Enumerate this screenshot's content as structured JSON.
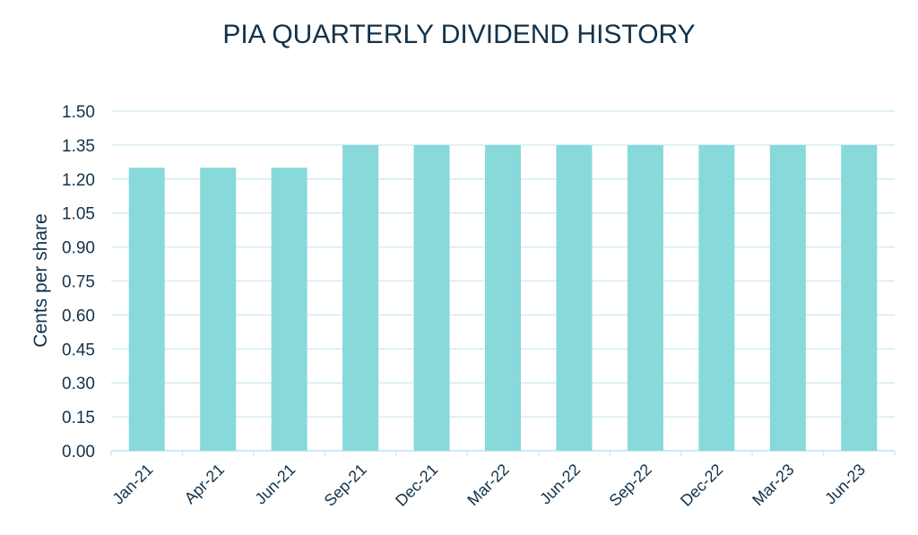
{
  "chart_data": {
    "type": "bar",
    "title": "PIA QUARTERLY DIVIDEND HISTORY",
    "xlabel": "",
    "ylabel": "Cents per share",
    "categories": [
      "Jan-21",
      "Apr-21",
      "Jun-21",
      "Sep-21",
      "Dec-21",
      "Mar-22",
      "Jun-22",
      "Sep-22",
      "Dec-22",
      "Mar-23",
      "Jun-23"
    ],
    "values": [
      1.25,
      1.25,
      1.25,
      1.35,
      1.35,
      1.35,
      1.35,
      1.35,
      1.35,
      1.35,
      1.35
    ],
    "ylim": [
      0,
      1.5
    ],
    "yticks": [
      "0.00",
      "0.15",
      "0.30",
      "0.45",
      "0.60",
      "0.75",
      "0.90",
      "1.05",
      "1.20",
      "1.35",
      "1.50"
    ],
    "grid": true,
    "legend": "none",
    "colors": {
      "bar": "#87D9DA",
      "grid": "#cdeaf3",
      "text": "#12324a"
    }
  }
}
